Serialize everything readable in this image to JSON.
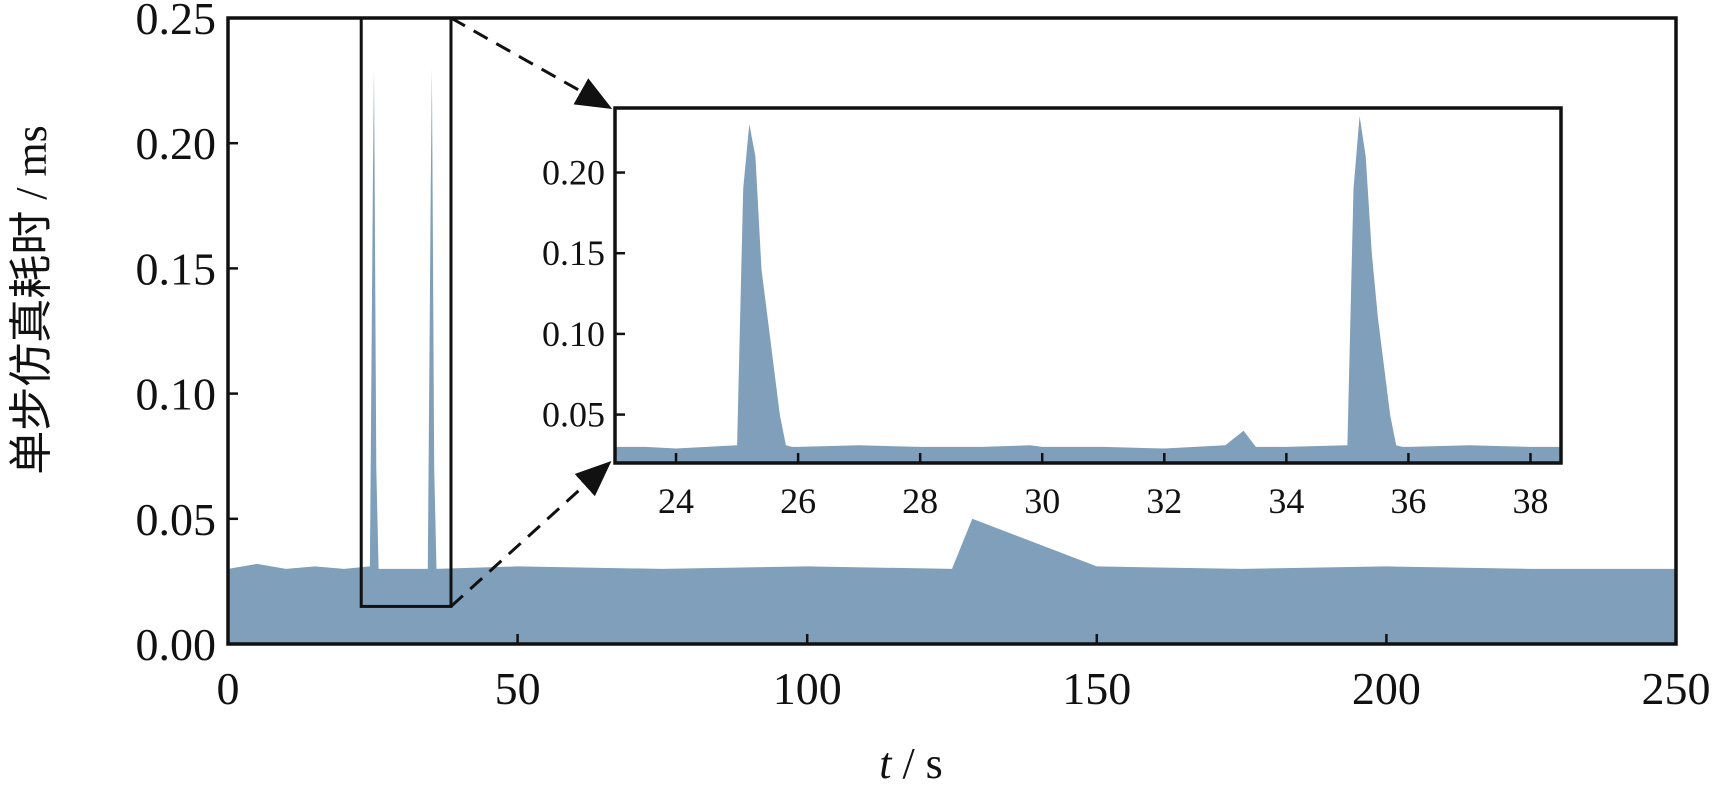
{
  "chart_data": [
    {
      "type": "area",
      "title": "",
      "xlabel_italic": "t",
      "xlabel_unit": " / s",
      "ylabel": "单步仿真耗时 / ms",
      "xlim": [
        0,
        250
      ],
      "ylim": [
        0,
        0.25
      ],
      "xticks": [
        0,
        50,
        100,
        150,
        200,
        250
      ],
      "xtick_labels": [
        "0",
        "50",
        "100",
        "150",
        "200",
        "250"
      ],
      "yticks": [
        0,
        0.05,
        0.1,
        0.15,
        0.2,
        0.25
      ],
      "ytick_labels": [
        "0.00",
        "0.05",
        "0.10",
        "0.15",
        "0.20",
        "0.25"
      ],
      "fill_color": "#7f9fbb",
      "baseline_level": 0.03,
      "series": [
        {
          "values": {
            "x": [
              0,
              5,
              10,
              15,
              20,
              24.5,
              25.0,
              25.2,
              25.6,
              26.0,
              30,
              34.5,
              35.0,
              35.2,
              35.6,
              36.0,
              50,
              75,
              100,
              125,
              128.5,
              150,
              175,
              200,
              225,
              250
            ],
            "y": [
              0.03,
              0.032,
              0.03,
              0.031,
              0.03,
              0.031,
              0.18,
              0.23,
              0.07,
              0.03,
              0.03,
              0.03,
              0.18,
              0.23,
              0.07,
              0.03,
              0.031,
              0.03,
              0.031,
              0.03,
              0.05,
              0.031,
              0.03,
              0.031,
              0.03,
              0.03
            ]
          }
        }
      ],
      "zoom_box": {
        "x_range": [
          23,
          38.5
        ],
        "y_range": [
          0.015,
          0.25
        ]
      }
    },
    {
      "type": "area",
      "title": "",
      "xlim": [
        23,
        38.5
      ],
      "ylim": [
        0.02,
        0.24
      ],
      "xticks": [
        24,
        26,
        28,
        30,
        32,
        34,
        36,
        38
      ],
      "xtick_labels": [
        "24",
        "26",
        "28",
        "30",
        "32",
        "34",
        "36",
        "38"
      ],
      "yticks": [
        0.05,
        0.1,
        0.15,
        0.2
      ],
      "ytick_labels": [
        "0.05",
        "0.10",
        "0.15",
        "0.20"
      ],
      "fill_color": "#7f9fbb",
      "series": [
        {
          "values": {
            "x": [
              23.0,
              23.5,
              24.0,
              24.5,
              25.0,
              25.1,
              25.2,
              25.3,
              25.4,
              25.5,
              25.6,
              25.7,
              25.8,
              25.9,
              26.0,
              27.0,
              28.0,
              29.0,
              29.8,
              30.0,
              31.0,
              32.0,
              33.0,
              33.3,
              33.5,
              34.0,
              35.0,
              35.1,
              35.2,
              35.3,
              35.4,
              35.5,
              35.6,
              35.7,
              35.8,
              35.9,
              36.0,
              37.0,
              38.0,
              38.5
            ],
            "y": [
              0.03,
              0.03,
              0.029,
              0.03,
              0.031,
              0.19,
              0.23,
              0.21,
              0.14,
              0.11,
              0.08,
              0.05,
              0.031,
              0.03,
              0.03,
              0.031,
              0.03,
              0.03,
              0.031,
              0.03,
              0.03,
              0.029,
              0.031,
              0.04,
              0.03,
              0.03,
              0.031,
              0.19,
              0.235,
              0.21,
              0.15,
              0.11,
              0.08,
              0.05,
              0.031,
              0.03,
              0.03,
              0.031,
              0.03,
              0.03
            ]
          }
        }
      ]
    }
  ]
}
